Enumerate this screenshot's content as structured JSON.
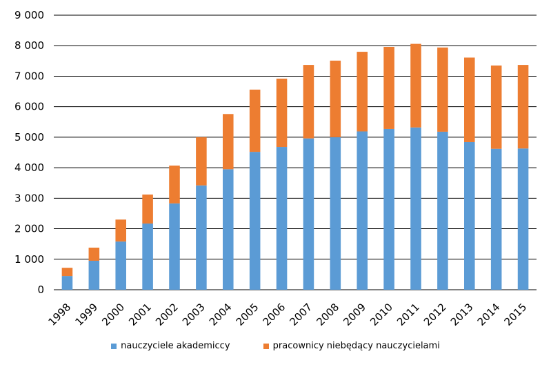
{
  "chart_data": {
    "type": "bar",
    "stacked": true,
    "categories": [
      "1998",
      "1999",
      "2000",
      "2001",
      "2002",
      "2003",
      "2004",
      "2005",
      "2006",
      "2007",
      "2008",
      "2009",
      "2010",
      "2011",
      "2012",
      "2013",
      "2014",
      "2015"
    ],
    "series": [
      {
        "name": "nauczyciele akademiccy",
        "color": "#5b9bd5",
        "values": [
          450,
          950,
          1580,
          2170,
          2830,
          3420,
          3950,
          4520,
          4680,
          4960,
          5000,
          5190,
          5270,
          5320,
          5180,
          4840,
          4620,
          4630
        ]
      },
      {
        "name": "pracownicy niebędący nauczycielami",
        "color": "#ed7d31",
        "values": [
          270,
          430,
          720,
          950,
          1240,
          1580,
          1810,
          2040,
          2240,
          2410,
          2510,
          2610,
          2690,
          2740,
          2760,
          2770,
          2730,
          2740
        ]
      }
    ],
    "ylim": [
      0,
      9000
    ],
    "yticks": [
      "0",
      "1 000",
      "2 000",
      "3 000",
      "4 000",
      "5 000",
      "6 000",
      "7 000",
      "8 000",
      "9 000"
    ],
    "ytick_values": [
      0,
      1000,
      2000,
      3000,
      4000,
      5000,
      6000,
      7000,
      8000,
      9000
    ],
    "grid": true,
    "legend_position": "bottom"
  }
}
